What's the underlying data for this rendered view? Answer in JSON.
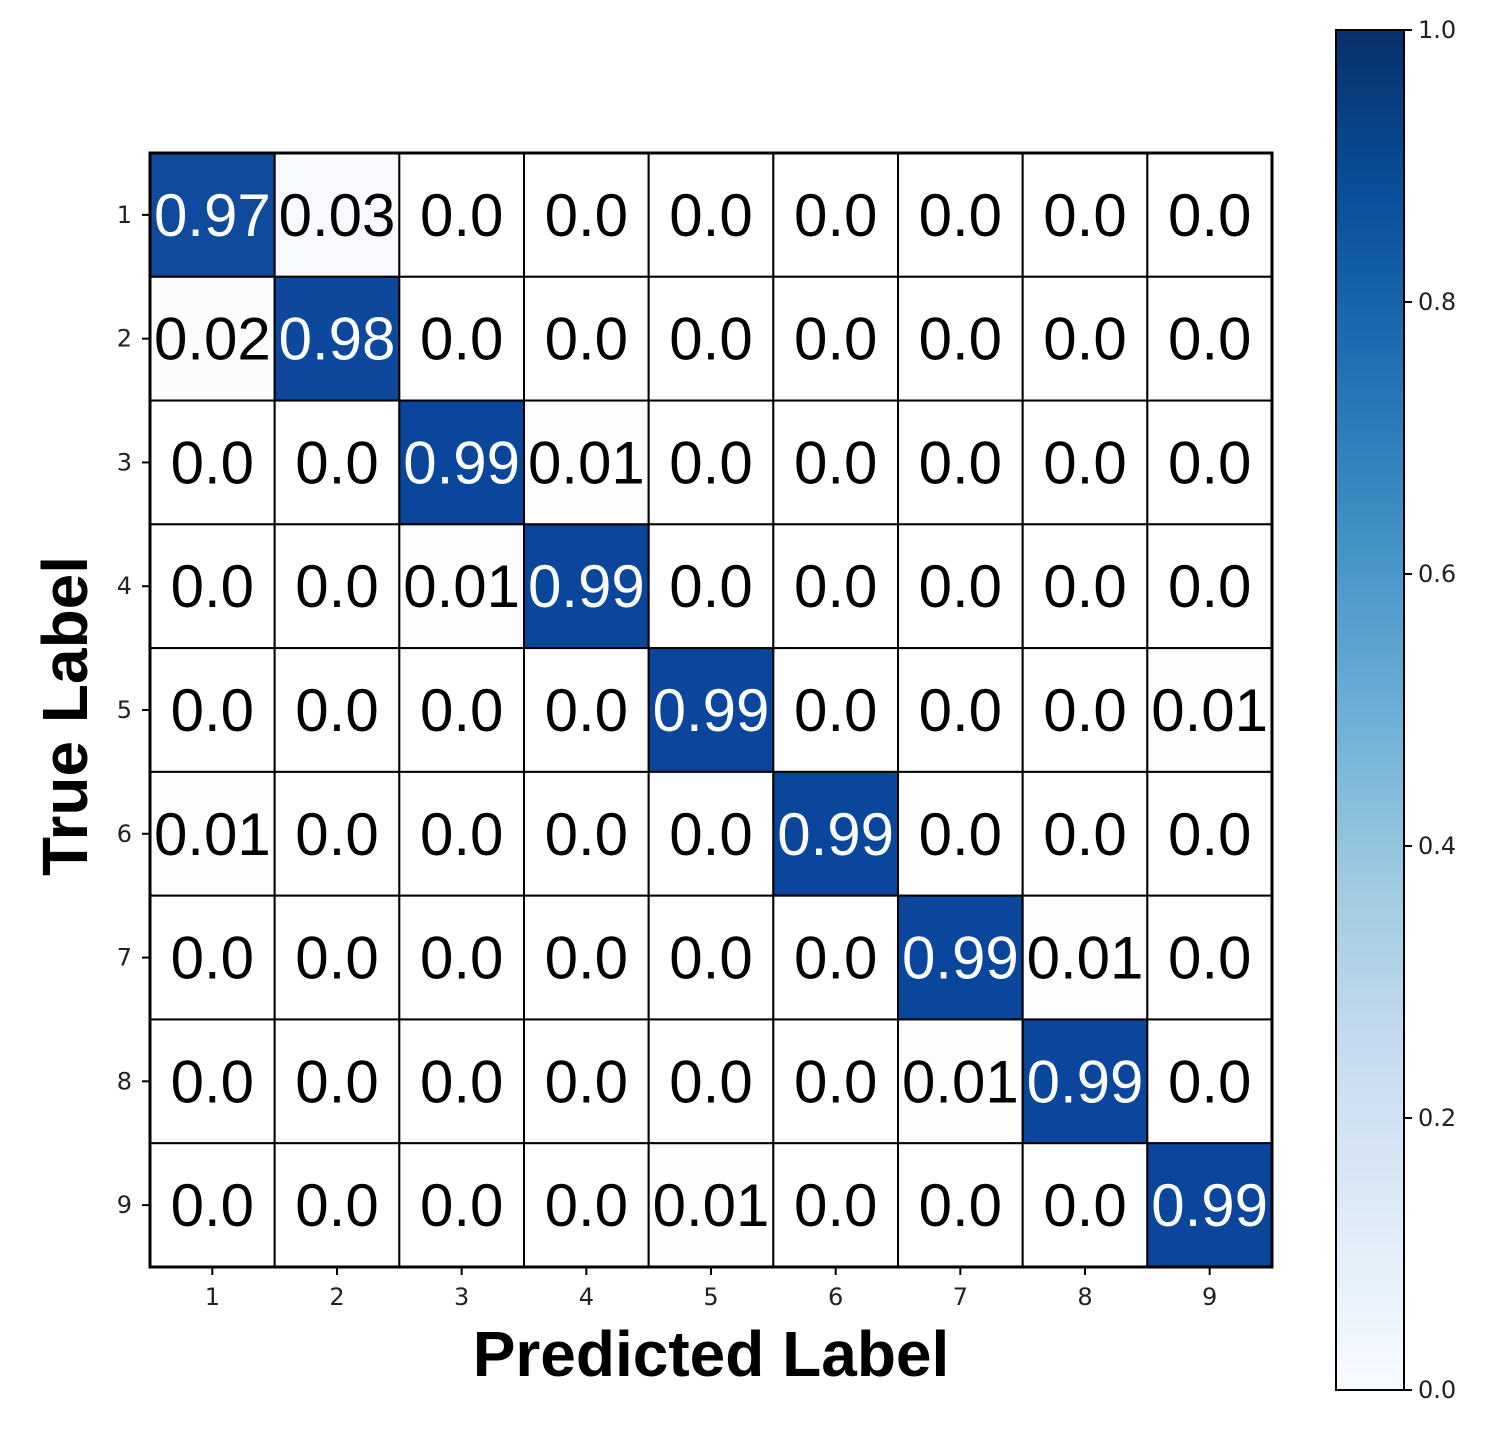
{
  "chart_data": {
    "type": "heatmap",
    "title": "",
    "xlabel": "Predicted Label",
    "ylabel": "True Label",
    "x_categories": [
      "1",
      "2",
      "3",
      "4",
      "5",
      "6",
      "7",
      "8",
      "9"
    ],
    "y_categories": [
      "1",
      "2",
      "3",
      "4",
      "5",
      "6",
      "7",
      "8",
      "9"
    ],
    "values": [
      [
        "0.97",
        "0.03",
        "0.0",
        "0.0",
        "0.0",
        "0.0",
        "0.0",
        "0.0",
        "0.0"
      ],
      [
        "0.02",
        "0.98",
        "0.0",
        "0.0",
        "0.0",
        "0.0",
        "0.0",
        "0.0",
        "0.0"
      ],
      [
        "0.0",
        "0.0",
        "0.99",
        "0.01",
        "0.0",
        "0.0",
        "0.0",
        "0.0",
        "0.0"
      ],
      [
        "0.0",
        "0.0",
        "0.01",
        "0.99",
        "0.0",
        "0.0",
        "0.0",
        "0.0",
        "0.0"
      ],
      [
        "0.0",
        "0.0",
        "0.0",
        "0.0",
        "0.99",
        "0.0",
        "0.0",
        "0.0",
        "0.01"
      ],
      [
        "0.01",
        "0.0",
        "0.0",
        "0.0",
        "0.0",
        "0.99",
        "0.0",
        "0.0",
        "0.0"
      ],
      [
        "0.0",
        "0.0",
        "0.0",
        "0.0",
        "0.0",
        "0.0",
        "0.99",
        "0.01",
        "0.0"
      ],
      [
        "0.0",
        "0.0",
        "0.0",
        "0.0",
        "0.0",
        "0.0",
        "0.01",
        "0.99",
        "0.0"
      ],
      [
        "0.0",
        "0.0",
        "0.0",
        "0.0",
        "0.01",
        "0.0",
        "0.0",
        "0.0",
        "0.99"
      ]
    ],
    "colorscale": "Blues",
    "color_high": "#08449a",
    "color_low": "#ffffff",
    "high_value_text_color": "#ffffff",
    "low_value_text_color": "#000000",
    "colorbar": {
      "range": [
        0.0,
        1.0
      ],
      "ticks": [
        "0.0",
        "0.2",
        "0.4",
        "0.6",
        "0.8",
        "1.0"
      ],
      "stops": [
        "#f7fbff",
        "#deebf7",
        "#c6dbef",
        "#9ecae1",
        "#6baed6",
        "#4292c6",
        "#2171b5",
        "#08519c",
        "#08306b"
      ]
    },
    "grid": true,
    "legend": "colorbar-right"
  }
}
